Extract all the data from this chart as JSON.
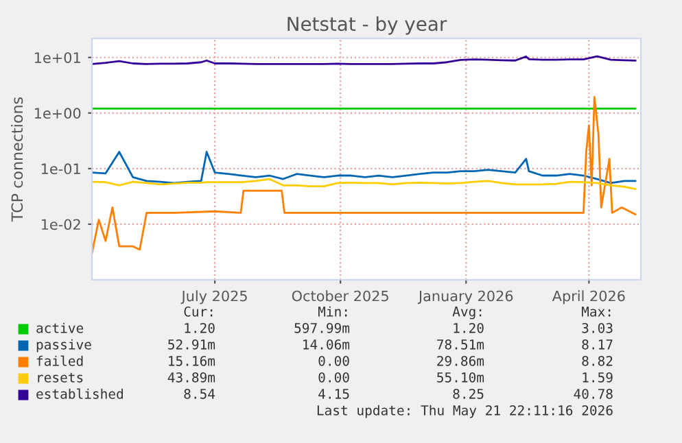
{
  "chart_data": {
    "type": "line",
    "title": "Netstat - by year",
    "ylabel": "TCP connections",
    "log": "y",
    "x": [
      "2025-04-02",
      "2025-04-12",
      "2025-04-22",
      "2025-05-02",
      "2025-05-12",
      "2025-05-22",
      "2025-06-01",
      "2025-06-11",
      "2025-06-21",
      "2025-06-25",
      "2025-07-01",
      "2025-07-11",
      "2025-07-21",
      "2025-07-31",
      "2025-08-10",
      "2025-08-20",
      "2025-08-30",
      "2025-09-09",
      "2025-09-19",
      "2025-09-29",
      "2025-10-09",
      "2025-10-19",
      "2025-10-29",
      "2025-11-08",
      "2025-11-18",
      "2025-11-28",
      "2025-12-08",
      "2025-12-18",
      "2025-12-28",
      "2026-01-07",
      "2026-01-17",
      "2026-01-27",
      "2026-02-06",
      "2026-02-14",
      "2026-02-16",
      "2026-02-26",
      "2026-03-08",
      "2026-03-18",
      "2026-03-28",
      "2026-04-07",
      "2026-04-17",
      "2026-04-27",
      "2026-05-05"
    ],
    "series": [
      {
        "name": "active",
        "color": "#00cc00",
        "values": [
          1.2,
          1.2,
          1.2,
          1.2,
          1.2,
          1.2,
          1.2,
          1.2,
          1.2,
          1.2,
          1.2,
          1.2,
          1.2,
          1.2,
          1.2,
          1.2,
          1.2,
          1.2,
          1.2,
          1.2,
          1.2,
          1.2,
          1.2,
          1.2,
          1.2,
          1.2,
          1.2,
          1.2,
          1.2,
          1.2,
          1.2,
          1.2,
          1.2,
          1.2,
          1.2,
          1.2,
          1.2,
          1.2,
          1.2,
          1.2,
          1.2,
          1.2,
          1.2
        ]
      },
      {
        "name": "passive",
        "color": "#0066b3",
        "values": [
          0.085,
          0.082,
          0.2,
          0.07,
          0.06,
          0.058,
          0.055,
          0.058,
          0.06,
          0.2,
          0.085,
          0.08,
          0.075,
          0.07,
          0.075,
          0.065,
          0.08,
          0.075,
          0.07,
          0.075,
          0.075,
          0.07,
          0.075,
          0.07,
          0.075,
          0.08,
          0.085,
          0.085,
          0.09,
          0.09,
          0.095,
          0.09,
          0.085,
          0.15,
          0.09,
          0.075,
          0.075,
          0.08,
          0.075,
          0.065,
          0.055,
          0.06,
          0.06
        ]
      },
      {
        "name": "failed",
        "color": "#ff8000",
        "x": [
          "2025-04-02",
          "2025-04-07",
          "2025-04-12",
          "2025-04-17",
          "2025-04-22",
          "2025-05-02",
          "2025-05-07",
          "2025-05-12",
          "2025-06-01",
          "2025-07-01",
          "2025-07-20",
          "2025-07-22",
          "2025-08-19",
          "2025-08-21",
          "2025-10-01",
          "2026-01-01",
          "2026-03-28",
          "2026-03-30",
          "2026-04-01",
          "2026-04-03",
          "2026-04-05",
          "2026-04-08",
          "2026-04-10",
          "2026-04-16",
          "2026-04-18",
          "2026-04-25",
          "2026-05-05"
        ],
        "values": [
          0.003,
          0.012,
          0.005,
          0.02,
          0.004,
          0.004,
          0.0035,
          0.016,
          0.016,
          0.017,
          0.016,
          0.04,
          0.04,
          0.016,
          0.016,
          0.016,
          0.016,
          0.2,
          0.6,
          0.05,
          1.95,
          0.4,
          0.02,
          0.15,
          0.016,
          0.02,
          0.015
        ]
      },
      {
        "name": "resets",
        "color": "#ffcc00",
        "values": [
          0.058,
          0.057,
          0.05,
          0.058,
          0.055,
          0.052,
          0.054,
          0.056,
          0.056,
          0.057,
          0.057,
          0.057,
          0.057,
          0.06,
          0.065,
          0.05,
          0.05,
          0.048,
          0.048,
          0.055,
          0.056,
          0.055,
          0.055,
          0.052,
          0.055,
          0.056,
          0.055,
          0.054,
          0.055,
          0.058,
          0.06,
          0.055,
          0.052,
          0.052,
          0.052,
          0.052,
          0.053,
          0.058,
          0.057,
          0.055,
          0.05,
          0.047,
          0.043
        ]
      },
      {
        "name": "established",
        "color": "#330099",
        "values": [
          7.6,
          8.0,
          8.6,
          7.8,
          7.6,
          7.7,
          7.7,
          7.8,
          8.2,
          8.8,
          7.8,
          7.8,
          7.7,
          7.6,
          7.6,
          7.6,
          7.6,
          7.6,
          7.6,
          7.7,
          7.6,
          7.6,
          7.6,
          7.6,
          7.7,
          7.8,
          7.8,
          8.2,
          9.0,
          9.2,
          9.1,
          8.9,
          8.8,
          10.4,
          9.3,
          9.1,
          9.1,
          9.2,
          9.2,
          10.5,
          9.1,
          8.9,
          8.8
        ]
      }
    ],
    "xlim": [
      "2025-04-02",
      "2026-05-09"
    ],
    "xticks": [
      {
        "value": "2025-07-01",
        "label": "July 2025"
      },
      {
        "value": "2025-10-01",
        "label": "October 2025"
      },
      {
        "value": "2026-01-01",
        "label": "January 2026"
      },
      {
        "value": "2026-04-01",
        "label": "April 2026"
      }
    ],
    "ylim": [
      0.001,
      22
    ],
    "yticks": [
      {
        "value": 10,
        "label": "1e+01"
      },
      {
        "value": 1,
        "label": "1e+00"
      },
      {
        "value": 0.1,
        "label": "1e-01"
      },
      {
        "value": 0.01,
        "label": "1e-02"
      }
    ],
    "grid": true,
    "legend": "bottom",
    "annotations": [
      "Cur:",
      "Min:",
      "Avg:",
      "Max:",
      "1.20",
      "597.99m",
      "1.20",
      "3.03",
      "52.91m",
      "14.06m",
      "78.51m",
      "8.17",
      "15.16m",
      "0.00",
      "29.86m",
      "8.82",
      "43.89m",
      "0.00",
      "55.10m",
      "1.59",
      "8.54",
      "4.15",
      "8.25",
      "40.78",
      "Last update: Thu May 21 22:11:16 2026"
    ]
  }
}
